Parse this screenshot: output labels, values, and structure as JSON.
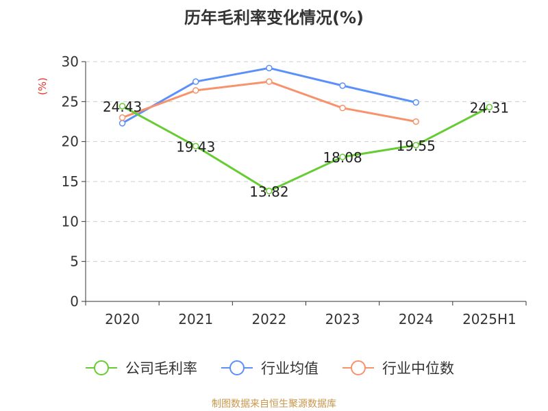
{
  "chart_data": {
    "type": "line",
    "title": "历年毛利率变化情况(%)",
    "ylabel": "(%)",
    "categories": [
      "2020",
      "2021",
      "2022",
      "2023",
      "2024",
      "2025H1"
    ],
    "ylim": [
      0,
      30
    ],
    "yticks": [
      0,
      5,
      10,
      15,
      20,
      25,
      30
    ],
    "grid": true,
    "legend_position": "bottom",
    "series": [
      {
        "name": "公司毛利率",
        "color": "#66cc33",
        "values": [
          24.43,
          19.43,
          13.82,
          18.08,
          19.55,
          24.31
        ],
        "labels": [
          "24.43",
          "19.43",
          "13.82",
          "18.08",
          "19.55",
          "24.31"
        ]
      },
      {
        "name": "行业均值",
        "color": "#5b8ff9",
        "values": [
          22.3,
          27.5,
          29.2,
          27.0,
          24.9,
          null
        ]
      },
      {
        "name": "行业中位数",
        "color": "#f7926b",
        "values": [
          23.0,
          26.4,
          27.5,
          24.2,
          22.5,
          null
        ]
      }
    ]
  },
  "colors": {
    "ylabel": "#e6342a",
    "source": "#c8964b",
    "axis": "#333333",
    "grid": "#cccccc"
  },
  "source_note": "制图数据来自恒生聚源数据库"
}
